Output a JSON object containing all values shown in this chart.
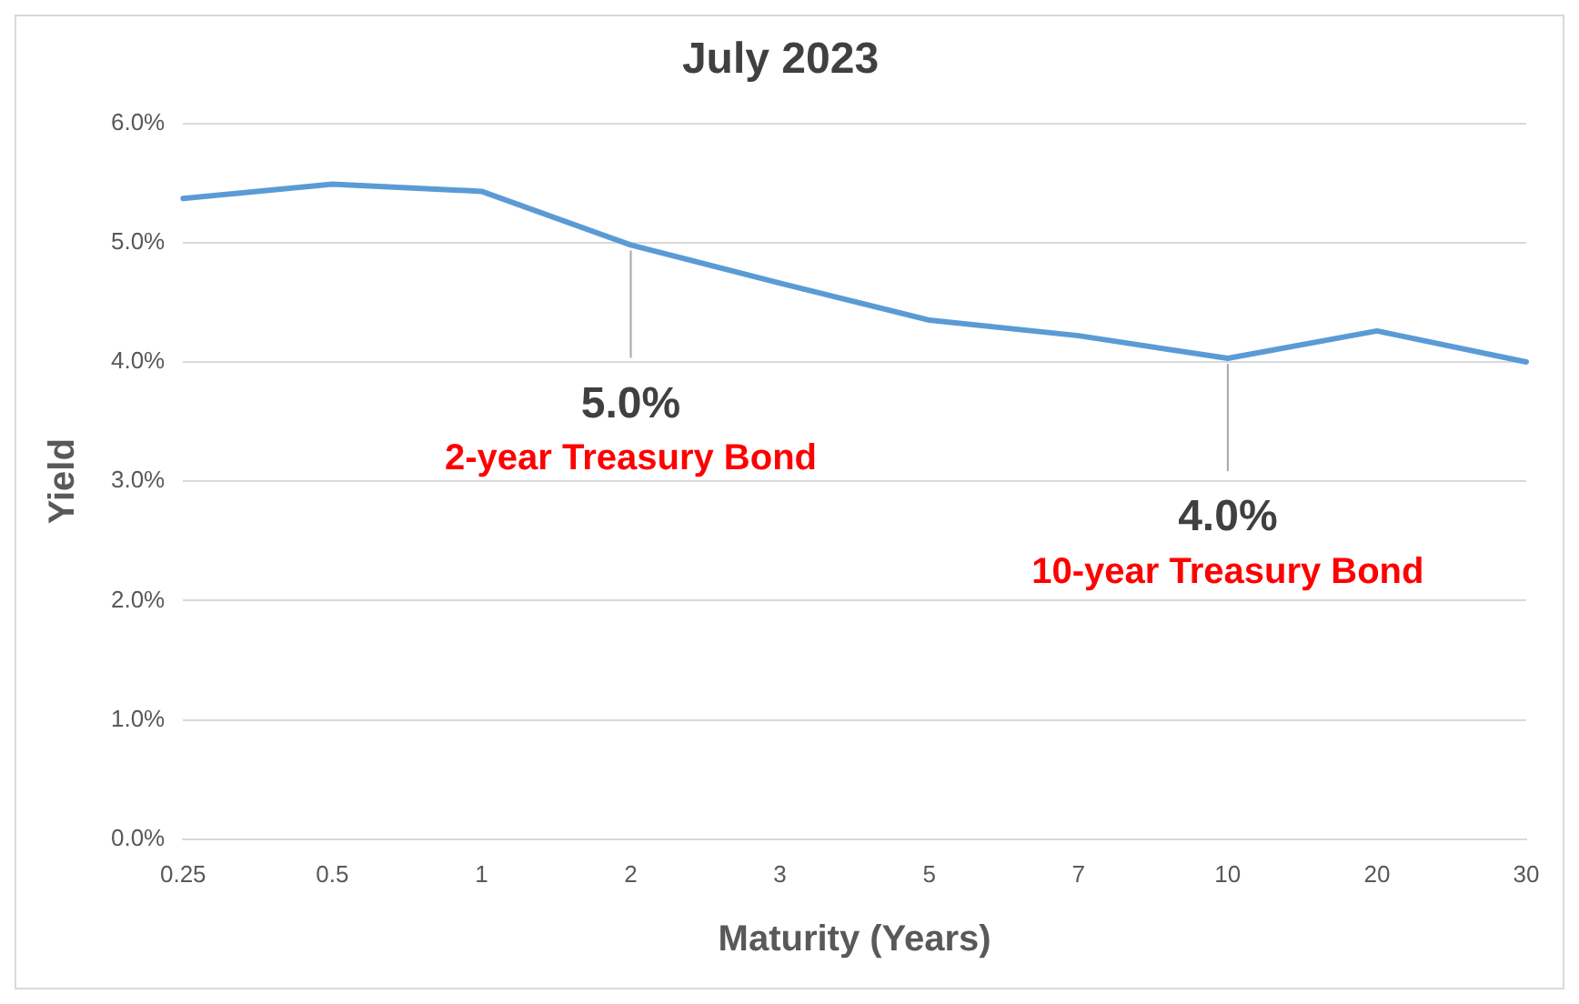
{
  "chart_data": {
    "type": "line",
    "title": "July 2023",
    "xlabel": "Maturity (Years)",
    "ylabel": "Yield",
    "categories": [
      "0.25",
      "0.5",
      "1",
      "2",
      "3",
      "5",
      "7",
      "10",
      "20",
      "30"
    ],
    "series": [
      {
        "color": "#5b9bd5",
        "values": [
          5.37,
          5.49,
          5.43,
          4.98,
          4.66,
          4.35,
          4.22,
          4.03,
          4.26,
          4.0
        ]
      }
    ],
    "ylim": [
      0,
      6
    ],
    "yticks": [
      {
        "value": 0,
        "label": "0.0%"
      },
      {
        "value": 1,
        "label": "1.0%"
      },
      {
        "value": 2,
        "label": "2.0%"
      },
      {
        "value": 3,
        "label": "3.0%"
      },
      {
        "value": 4,
        "label": "4.0%"
      },
      {
        "value": 5,
        "label": "5.0%"
      },
      {
        "value": 6,
        "label": "6.0%"
      }
    ],
    "grid": "y",
    "legend": false,
    "marker": "none",
    "line_style": "solid",
    "annotations": [
      {
        "text": "5.0%",
        "x": "2",
        "y": 4.98
      },
      "2-year Treasury Bond",
      {
        "text": "4.0%",
        "x": "10",
        "y": 4.03
      },
      "10-year Treasury Bond"
    ]
  }
}
